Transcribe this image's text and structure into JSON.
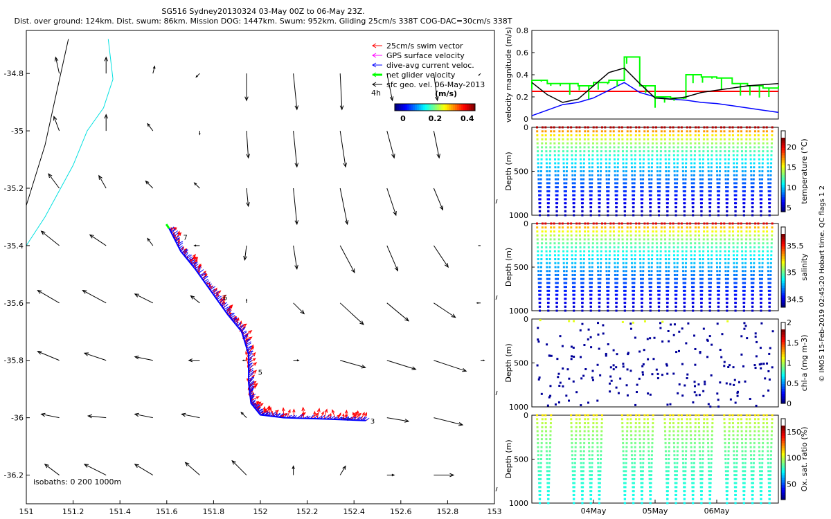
{
  "header": {
    "line1": "SG516 Sydney20130324 03-May 00Z to 06-May 23Z.",
    "line2": "Dist. over ground: 124km. Dist. swum: 86km. Mission DOG: 1447km. Swum: 952km. Gliding 25cm/s 338T COG-DAC=30cm/s 338T"
  },
  "side_note": "© IMOS 15-Feb-2019 02:45:20 Hobart time. QC flags 1  2",
  "chart_data": [
    {
      "type": "scatter",
      "name": "map",
      "xlim": [
        151,
        153
      ],
      "ylim": [
        -36.3,
        -34.65
      ],
      "xticks": [
        "151",
        "151.2",
        "151.4",
        "151.6",
        "151.8",
        "152",
        "152.2",
        "152.4",
        "152.6",
        "152.8",
        "153"
      ],
      "yticks": [
        "-34.8",
        "-35",
        "-35.2",
        "-35.4",
        "-35.6",
        "-35.8",
        "-36",
        "-36.2"
      ],
      "legend": {
        "placement": "top-right",
        "entries": [
          {
            "label": "25cm/s swim vector",
            "color": "#ff0000"
          },
          {
            "label": "GPS surface velocity",
            "color": "#ff00ff"
          },
          {
            "label": "dive-avg current veloc.",
            "color": "#0000ff"
          },
          {
            "label": "net glider velocity",
            "color": "#00ff00"
          },
          {
            "label": "sfc geo. vel. 06-May-2013",
            "color": "#000000"
          }
        ]
      },
      "colorbar": {
        "title": "(m/s)",
        "ticks": [
          "0",
          "0.2",
          "0.4"
        ],
        "range": [
          0,
          0.5
        ],
        "note": "4h"
      },
      "isobath_label": "isobaths: 0   200  1000m",
      "day_labels": [
        {
          "text": "3",
          "lon": 152.47,
          "lat": -36.01
        },
        {
          "text": "5",
          "lon": 151.99,
          "lat": -35.84
        },
        {
          "text": "6",
          "lon": 151.84,
          "lat": -35.58
        },
        {
          "text": "7",
          "lon": 151.67,
          "lat": -35.37
        }
      ],
      "track": [
        [
          152.45,
          -36.01
        ],
        [
          152.3,
          -36.005
        ],
        [
          152.1,
          -36.0
        ],
        [
          152.0,
          -35.99
        ],
        [
          151.96,
          -35.95
        ],
        [
          151.95,
          -35.88
        ],
        [
          151.95,
          -35.78
        ],
        [
          151.92,
          -35.7
        ],
        [
          151.86,
          -35.64
        ],
        [
          151.79,
          -35.56
        ],
        [
          151.72,
          -35.48
        ],
        [
          151.66,
          -35.42
        ],
        [
          151.61,
          -35.34
        ]
      ],
      "isobath_0": [
        [
          151.0,
          -35.26
        ],
        [
          151.08,
          -35.05
        ],
        [
          151.12,
          -34.9
        ],
        [
          151.18,
          -34.68
        ]
      ],
      "isobath_1000": [
        [
          151.0,
          -35.4
        ],
        [
          151.08,
          -35.3
        ],
        [
          151.2,
          -35.12
        ],
        [
          151.26,
          -35.0
        ],
        [
          151.33,
          -34.92
        ],
        [
          151.37,
          -34.82
        ],
        [
          151.35,
          -34.68
        ]
      ],
      "current_grid": {
        "lons": [
          151.2,
          151.4,
          151.6,
          151.8,
          152.0,
          152.2,
          152.4,
          152.6,
          152.8,
          153.0
        ],
        "lats": [
          -34.8,
          -35.0,
          -35.2,
          -35.4,
          -35.6,
          -35.8,
          -36.0,
          -36.2
        ],
        "u": [
          [
            -0.02,
            0.0,
            0.01,
            -0.02,
            0.0,
            0.02,
            0.01,
            0.03,
            0.02,
            -0.01
          ],
          [
            -0.03,
            0.0,
            -0.03,
            0.0,
            0.01,
            0.02,
            0.03,
            0.04,
            0.03,
            0.0
          ],
          [
            -0.06,
            -0.04,
            -0.04,
            -0.03,
            0.01,
            0.02,
            0.04,
            0.05,
            0.05,
            0.0
          ],
          [
            -0.1,
            -0.09,
            -0.03,
            -0.03,
            -0.01,
            0.02,
            0.08,
            0.06,
            0.08,
            -0.01
          ],
          [
            -0.12,
            -0.13,
            -0.1,
            -0.05,
            0.0,
            0.06,
            0.13,
            0.12,
            0.12,
            -0.02
          ],
          [
            -0.12,
            -0.12,
            -0.1,
            -0.06,
            -0.02,
            0.03,
            0.14,
            0.16,
            0.18,
            0.02
          ],
          [
            -0.1,
            -0.1,
            -0.1,
            -0.1,
            -0.03,
            0.0,
            0.06,
            0.12,
            0.16,
            0.0
          ],
          [
            -0.08,
            -0.12,
            -0.1,
            -0.08,
            -0.08,
            0.0,
            0.03,
            0.04,
            0.11,
            0.0
          ]
        ],
        "v": [
          [
            0.09,
            0.09,
            0.04,
            -0.02,
            -0.15,
            -0.2,
            -0.2,
            -0.15,
            -0.15,
            -0.01
          ],
          [
            0.08,
            0.09,
            0.04,
            -0.02,
            -0.15,
            -0.2,
            -0.2,
            -0.15,
            -0.15,
            0.0
          ],
          [
            0.08,
            0.07,
            0.04,
            0.03,
            -0.1,
            -0.2,
            -0.2,
            -0.15,
            -0.12,
            0.0
          ],
          [
            0.08,
            0.06,
            0.04,
            0.0,
            -0.08,
            -0.13,
            -0.15,
            -0.14,
            -0.12,
            0.0
          ],
          [
            0.07,
            0.07,
            0.05,
            0.04,
            0.02,
            -0.06,
            -0.12,
            -0.1,
            -0.08,
            0.0
          ],
          [
            0.05,
            0.04,
            0.02,
            0.0,
            0.0,
            0.0,
            -0.04,
            -0.05,
            -0.06,
            0.0
          ],
          [
            0.02,
            0.01,
            0.02,
            0.02,
            0.03,
            0.0,
            -0.01,
            -0.02,
            -0.04,
            0.0
          ],
          [
            0.06,
            0.06,
            0.06,
            0.07,
            0.08,
            0.05,
            0.05,
            0.0,
            0.0,
            0.0
          ]
        ]
      }
    },
    {
      "type": "line",
      "name": "velocity",
      "ylabel": "velocity magnitude (m/s)",
      "xlim": [
        "03May",
        "07May"
      ],
      "ylim": [
        0,
        0.8
      ],
      "yticks": [
        "0",
        "0.2",
        "0.4",
        "0.6",
        "0.8"
      ],
      "x": [
        3.0,
        3.25,
        3.5,
        3.75,
        4.0,
        4.25,
        4.5,
        4.75,
        5.0,
        5.25,
        5.5,
        5.75,
        6.0,
        6.25,
        6.5,
        6.75,
        7.0
      ],
      "series": [
        {
          "name": "25cm/s swim vector",
          "color": "#ff0000",
          "values": [
            0.25,
            0.25,
            0.25,
            0.25,
            0.25,
            0.25,
            0.25,
            0.25,
            0.25,
            0.25,
            0.25,
            0.25,
            0.25,
            0.25,
            0.25,
            0.25,
            0.25
          ]
        },
        {
          "name": "dive-avg current veloc.",
          "color": "#0000ff",
          "values": [
            0.03,
            0.08,
            0.13,
            0.15,
            0.19,
            0.26,
            0.33,
            0.24,
            0.2,
            0.18,
            0.17,
            0.15,
            0.14,
            0.12,
            0.1,
            0.08,
            0.06
          ]
        },
        {
          "name": "net glider velocity",
          "color": "#00ff00",
          "values": [
            0.35,
            0.32,
            0.32,
            0.3,
            0.33,
            0.35,
            0.56,
            0.3,
            0.2,
            0.19,
            0.4,
            0.38,
            0.37,
            0.32,
            0.3,
            0.28,
            0.3
          ]
        },
        {
          "name": "sfc geo. vel.",
          "color": "#000000",
          "values": [
            0.33,
            0.22,
            0.15,
            0.18,
            0.3,
            0.42,
            0.46,
            0.32,
            0.19,
            0.18,
            0.2,
            0.24,
            0.26,
            0.28,
            0.3,
            0.31,
            0.32
          ]
        }
      ]
    },
    {
      "type": "scatter",
      "name": "temperature",
      "ylabel": "Depth (m)",
      "cbar_label": "temperature (°C)",
      "cbar_ticks": [
        "5",
        "10",
        "15",
        "20"
      ],
      "crange": [
        4,
        24
      ],
      "depth_ticks": [
        "0",
        "500",
        "1000"
      ],
      "ylim": [
        1000,
        0
      ],
      "dives": 28,
      "max_depth": 1000,
      "surface_value": 23,
      "deep_value": 5,
      "pattern": "full"
    },
    {
      "type": "scatter",
      "name": "salinity",
      "ylabel": "Depth (m)",
      "cbar_label": "salinity",
      "cbar_ticks": [
        "34.5",
        "35",
        "35.5"
      ],
      "crange": [
        34.35,
        35.85
      ],
      "depth_ticks": [
        "0",
        "500",
        "1000"
      ],
      "ylim": [
        1000,
        0
      ],
      "dives": 28,
      "max_depth": 1000,
      "surface_value": 35.7,
      "deep_value": 34.45,
      "pattern": "full"
    },
    {
      "type": "scatter",
      "name": "chla",
      "ylabel": "Depth (m)",
      "cbar_label": "chl-a (mg m-3)",
      "cbar_ticks": [
        "0",
        "0.5",
        "1",
        "1.5",
        "2"
      ],
      "crange": [
        0,
        2
      ],
      "depth_ticks": [
        "0",
        "500",
        "1000"
      ],
      "ylim": [
        1000,
        0
      ],
      "dives": 28,
      "max_depth": 1000,
      "surface_value": 1.2,
      "deep_value": 0,
      "pattern": "sparse"
    },
    {
      "type": "scatter",
      "name": "oxygen",
      "ylabel": "Depth (m)",
      "cbar_label": "Ox. sat. ratio (%)",
      "cbar_ticks": [
        "50",
        "100",
        "150"
      ],
      "crange": [
        20,
        175
      ],
      "depth_ticks": [
        "0",
        "500",
        "1000"
      ],
      "xticks": [
        "04May",
        "05May",
        "06May"
      ],
      "ylim": [
        1000,
        0
      ],
      "dives": 28,
      "max_depth": 1000,
      "surface_value": 120,
      "deep_value": 80,
      "pattern": "gapped"
    }
  ]
}
